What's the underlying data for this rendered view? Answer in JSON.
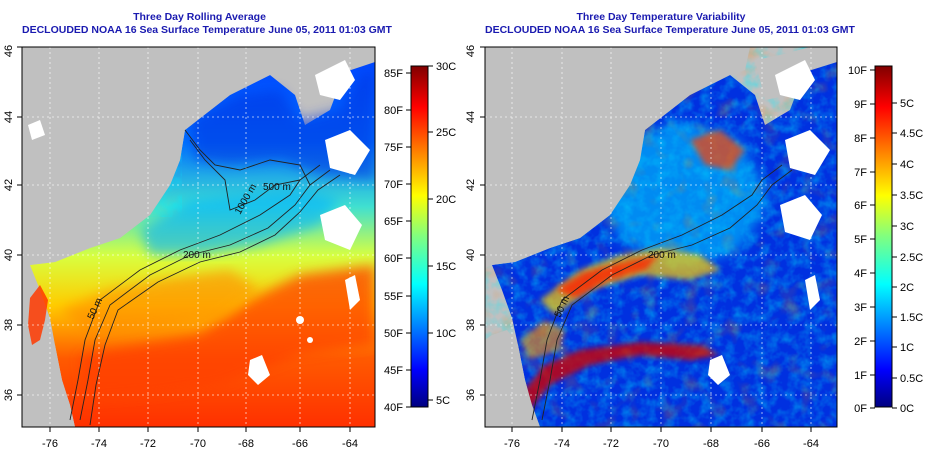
{
  "left_panel": {
    "title_line1": "Three Day Rolling Average",
    "title_line2": "DECLOUDED NOAA 16 Sea Surface Temperature June 05, 2011 01:03 GMT",
    "contour_labels": [
      "1000 m",
      "500 m",
      "200 m",
      "50 m"
    ],
    "colorbar_f_labels": [
      "85F",
      "80F",
      "75F",
      "70F",
      "65F",
      "60F",
      "55F",
      "50F",
      "45F",
      "40F"
    ],
    "colorbar_c_labels": [
      "30C",
      "25C",
      "20C",
      "15C",
      "10C",
      "5C"
    ]
  },
  "right_panel": {
    "title_line1": "Three Day Temperature Variability",
    "title_line2": "DECLOUDED NOAA 16 Sea Surface Temperature June 05, 2011 01:03 GMT",
    "contour_labels": [
      "200 m",
      "50 m"
    ],
    "colorbar_f_labels": [
      "10F",
      "9F",
      "8F",
      "7F",
      "6F",
      "5F",
      "4F",
      "3F",
      "2F",
      "1F",
      "0F"
    ],
    "colorbar_c_labels": [
      "5C",
      "4.5C",
      "4C",
      "3.5C",
      "3C",
      "2.5C",
      "2C",
      "1.5C",
      "1C",
      "0.5C",
      "0C"
    ]
  },
  "axes": {
    "lon_labels": [
      "-76",
      "-74",
      "-72",
      "-70",
      "-68",
      "-66",
      "-64"
    ],
    "lat_labels": [
      "36",
      "38",
      "40",
      "42",
      "44",
      "46"
    ]
  },
  "colors": {
    "title": "#1a1ab0",
    "land": "#c0c0c0",
    "cloud": "#ffffff",
    "jet_colormap": [
      "#000080",
      "#0000ff",
      "#0080ff",
      "#00ffff",
      "#80ff80",
      "#ffff00",
      "#ff8000",
      "#ff0000",
      "#800000"
    ]
  }
}
